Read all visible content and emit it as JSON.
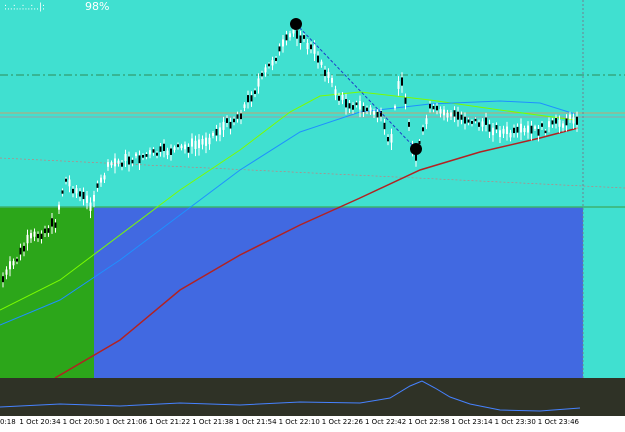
{
  "header": {
    "dots": ":..:..:..:..|:",
    "percent": "98%"
  },
  "time_axis": {
    "labels": [
      "0:18",
      "1 Oct 20:34",
      "1 Oct 20:50",
      "1 Oct 21:06",
      "1 Oct 21:22",
      "1 Oct 21:38",
      "1 Oct 21:54",
      "1 Oct 22:10",
      "1 Oct 22:26",
      "1 Oct 22:42",
      "1 Oct 22:58",
      "1 Oct 23:14",
      "1 Oct 23:30",
      "1 Oct 23:46"
    ]
  }
}
